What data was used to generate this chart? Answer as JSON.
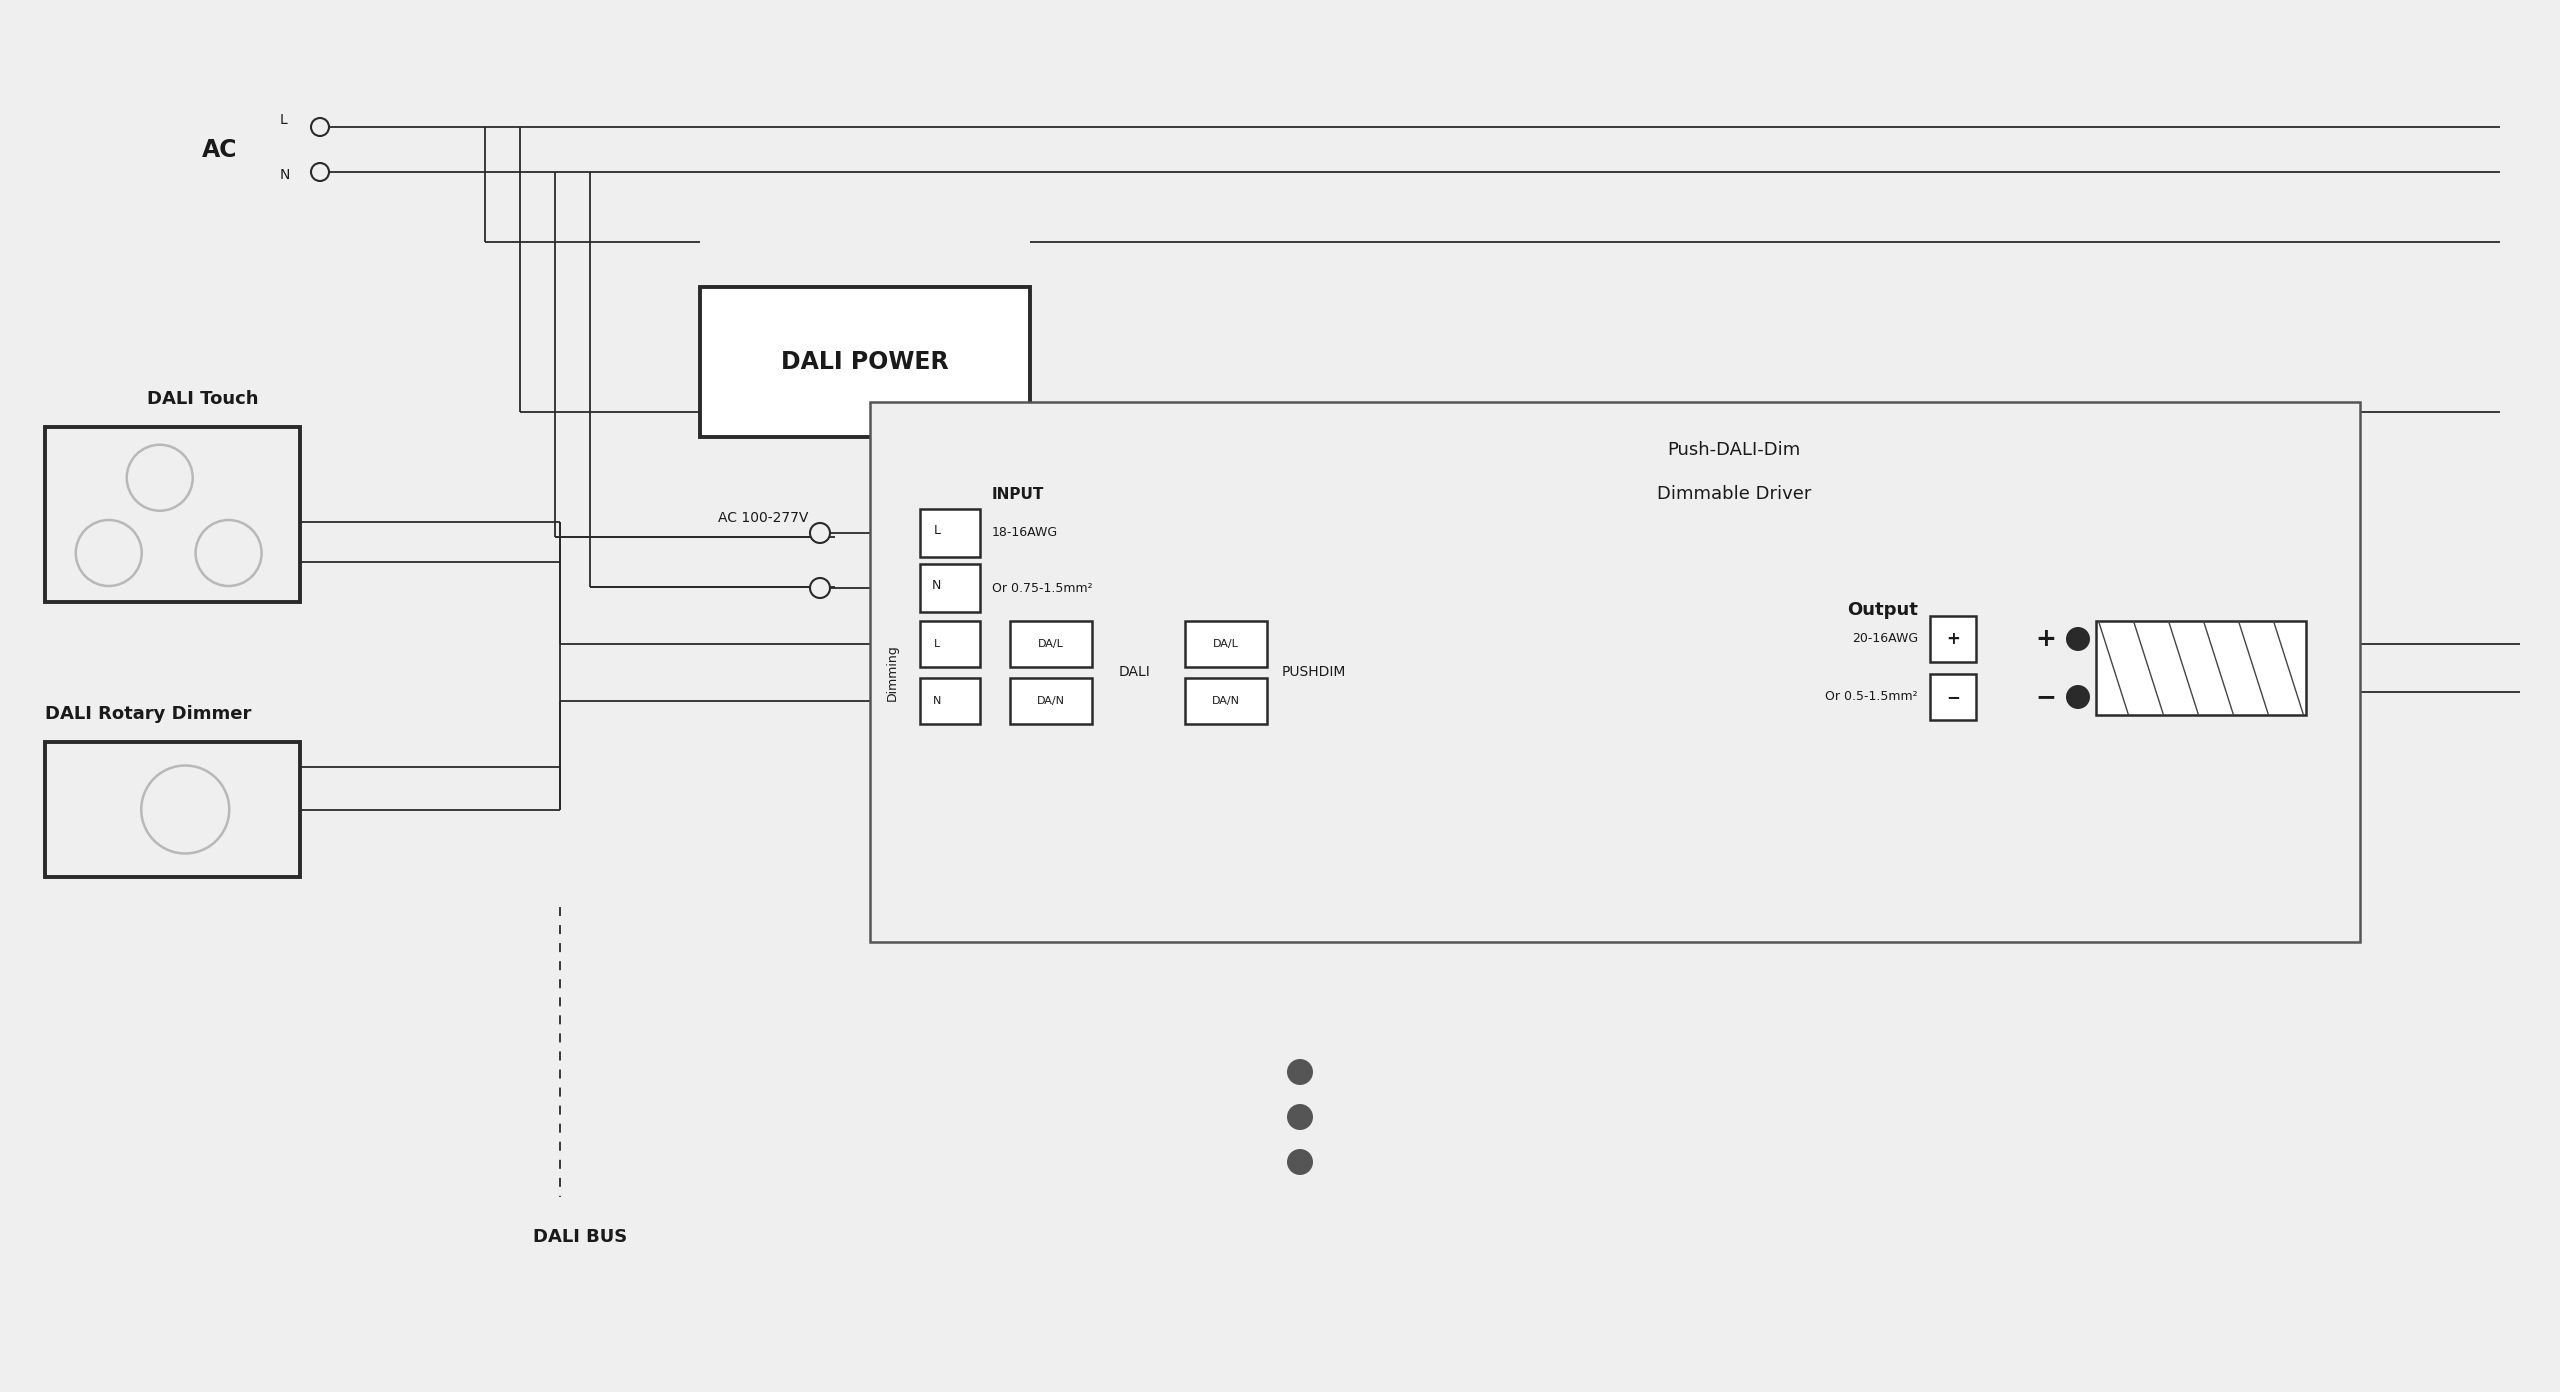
{
  "bg_color": "#efefef",
  "line_color": "#2a2a2a",
  "text_color": "#1a1a1a",
  "box_bg": "#ffffff",
  "fig_w": 25.6,
  "fig_h": 13.92,
  "dpi": 100,
  "labels": {
    "ac": "AC",
    "L": "L",
    "N": "N",
    "dali_touch": "DALI Touch",
    "dali_rotary": "DALI Rotary Dimmer",
    "dali_power": "DALI POWER",
    "driver_line1": "Push-DALI-Dim",
    "driver_line2": "Dimmable Driver",
    "input": "INPUT",
    "input_spec1": "18-16AWG",
    "input_spec2": "Or 0.75-1.5mm²",
    "ac_range": "AC 100-277V",
    "dimming": "Dimming",
    "dal": "DA/L",
    "dan": "DA/N",
    "dali": "DALI",
    "pushdim": "PUSHDIM",
    "output": "Output",
    "output_spec1": "20-16AWG",
    "output_spec2": "Or 0.5-1.5mm²",
    "plus": "+",
    "minus": "−",
    "dali_bus": "DALI BUS"
  }
}
